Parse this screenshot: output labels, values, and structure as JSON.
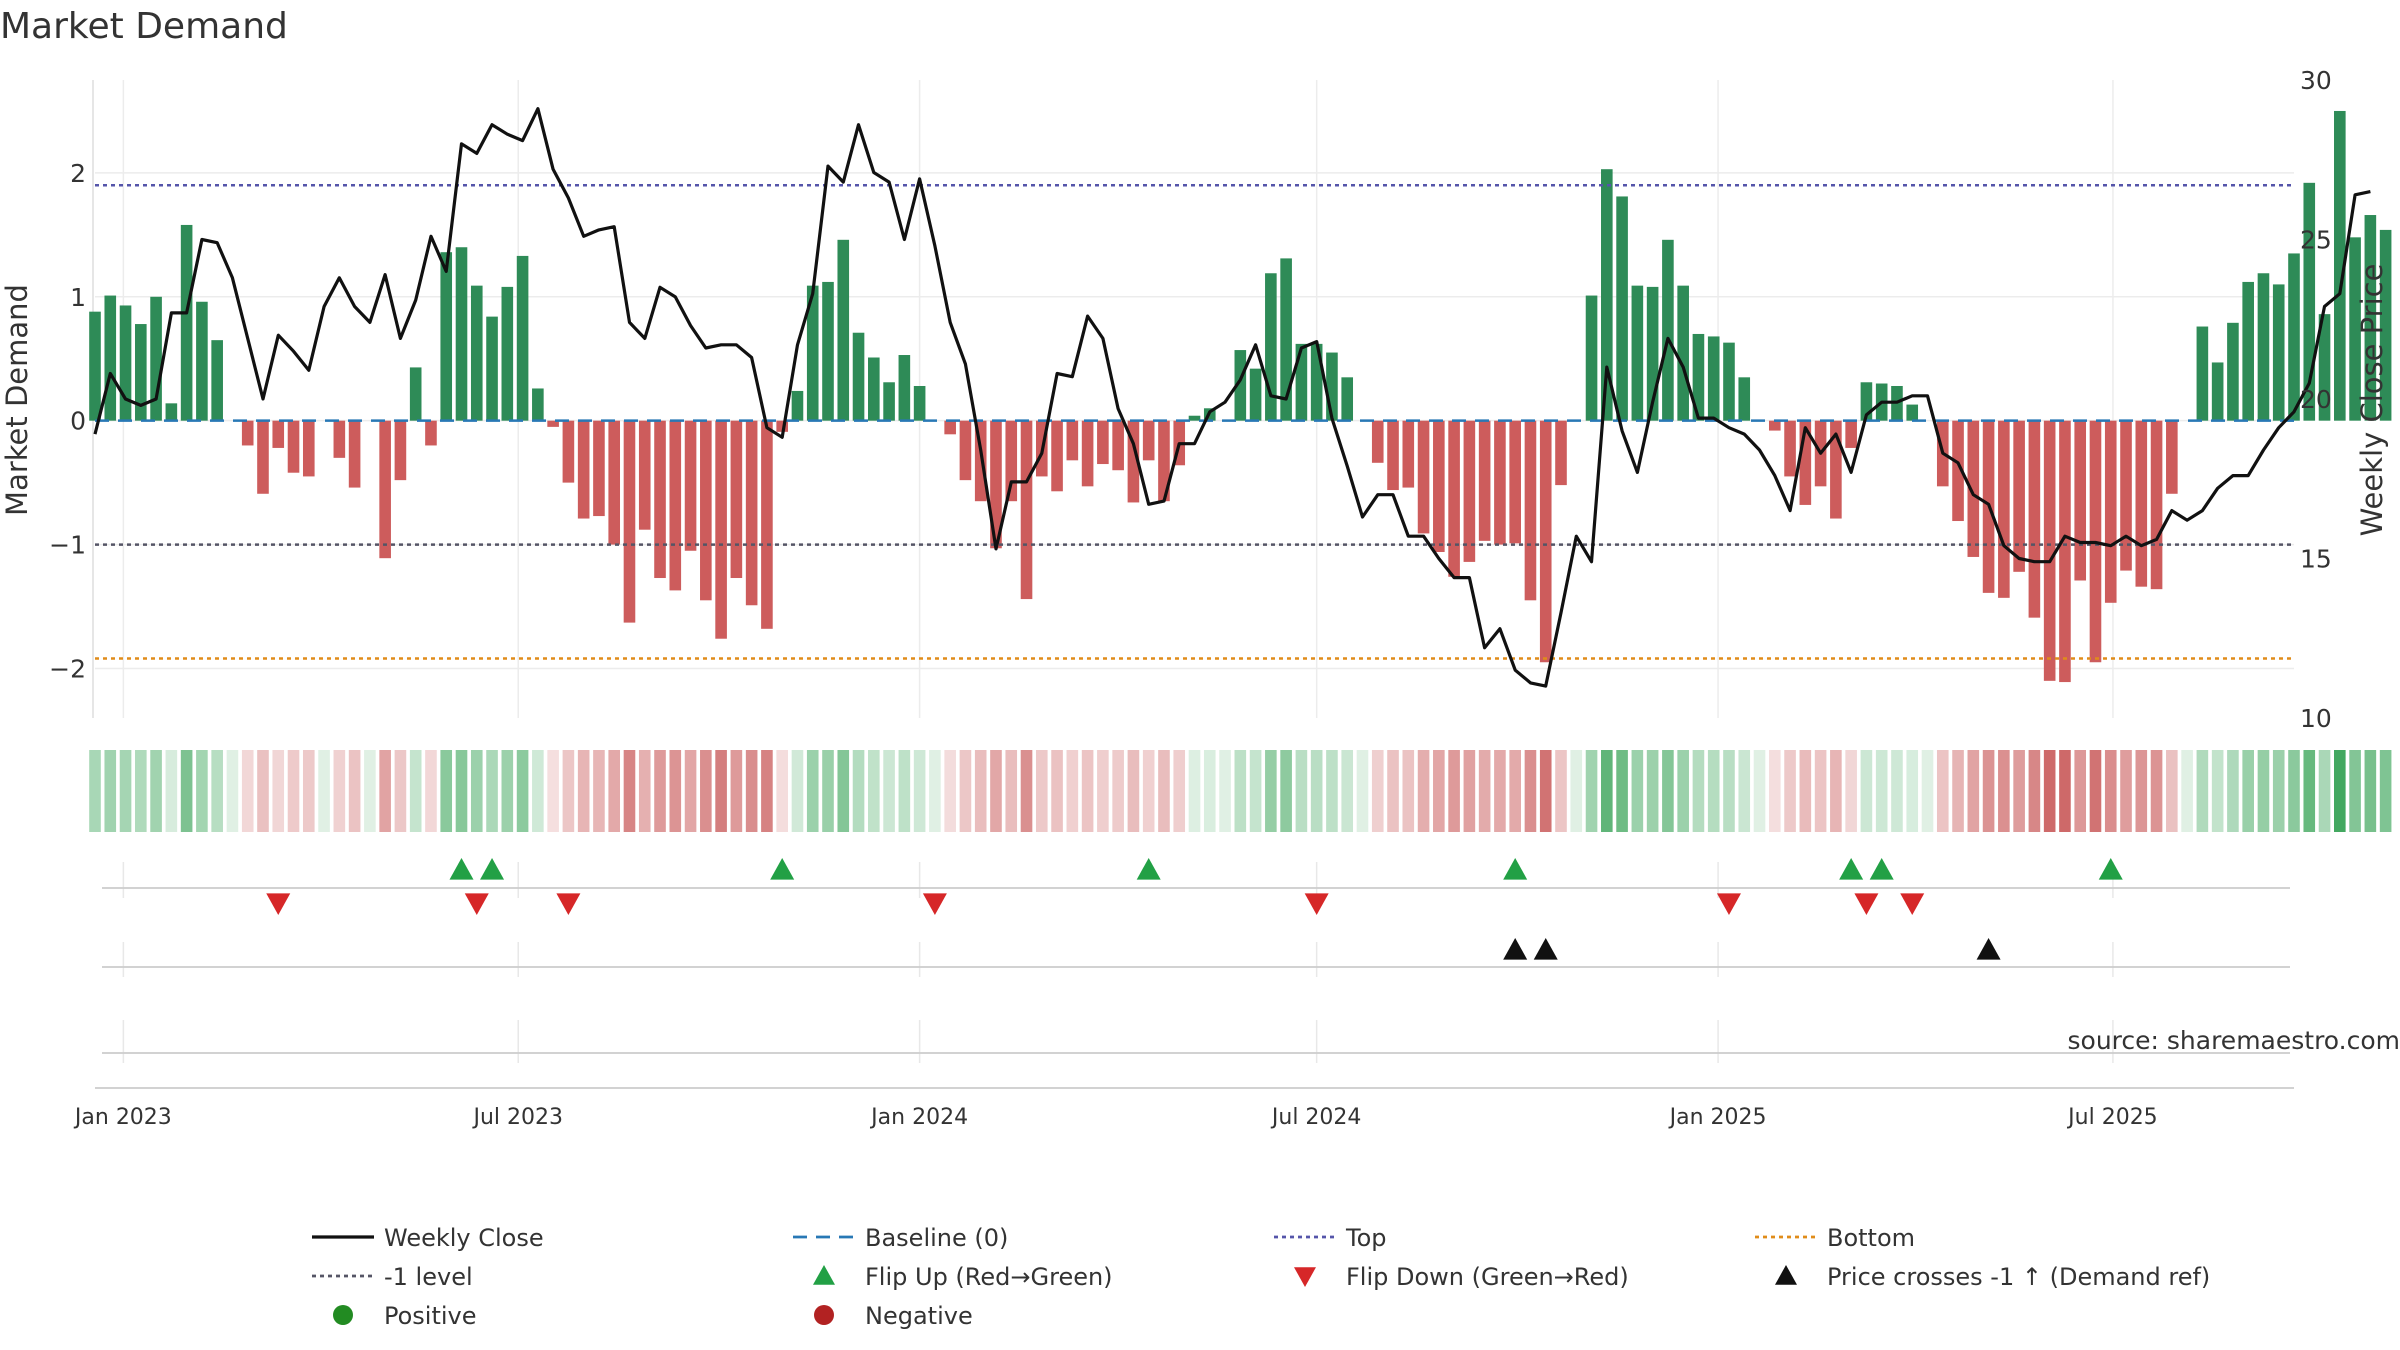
{
  "chart_data": {
    "type": "bar",
    "title": "Market Demand",
    "ylabel_left": "Market Demand",
    "ylabel_right": "Weekly Close Price",
    "ylim_left": [
      -2.4,
      2.75
    ],
    "ylim_right": [
      10,
      30
    ],
    "yticks_left": [
      "2",
      "1",
      "0",
      "−1",
      "−2"
    ],
    "yticks_left_values": [
      2,
      1,
      0,
      -1,
      -2
    ],
    "yticks_right": [
      "30",
      "25",
      "20",
      "15",
      "10"
    ],
    "yticks_right_values": [
      30,
      25,
      20,
      15,
      10
    ],
    "x_range": [
      "2022-12-19",
      "2025-09-22"
    ],
    "x_ticks": [
      {
        "date": "2023-01-01",
        "label": "Jan 2023"
      },
      {
        "date": "2023-07-01",
        "label": "Jul 2023"
      },
      {
        "date": "2024-01-01",
        "label": "Jan 2024"
      },
      {
        "date": "2024-07-01",
        "label": "Jul 2024"
      },
      {
        "date": "2025-01-01",
        "label": "Jan 2025"
      },
      {
        "date": "2025-07-01",
        "label": "Jul 2025"
      }
    ],
    "start_date": "2022-12-19",
    "week_step_days": 7,
    "top_level": 1.9,
    "bottom_level": -1.92,
    "minus_one_level": -1,
    "baseline": 0,
    "demand": [
      0.88,
      1.01,
      0.93,
      0.78,
      1.0,
      0.14,
      1.58,
      0.96,
      0.65,
      0,
      -0.2,
      -0.59,
      -0.22,
      -0.42,
      -0.45,
      0,
      -0.3,
      -0.54,
      0,
      -1.11,
      -0.48,
      0.43,
      -0.2,
      1.36,
      1.4,
      1.09,
      0.84,
      1.08,
      1.33,
      0.26,
      -0.05,
      -0.5,
      -0.79,
      -0.77,
      -1.0,
      -1.63,
      -0.88,
      -1.27,
      -1.37,
      -1.05,
      -1.45,
      -1.76,
      -1.27,
      -1.49,
      -1.68,
      -0.09,
      0.24,
      1.09,
      1.12,
      1.46,
      0.71,
      0.51,
      0.31,
      0.53,
      0.28,
      0,
      -0.11,
      -0.48,
      -0.65,
      -1.03,
      -0.65,
      -1.44,
      -0.45,
      -0.57,
      -0.32,
      -0.53,
      -0.35,
      -0.4,
      -0.66,
      -0.32,
      -0.65,
      -0.36,
      0.04,
      0.1,
      0,
      0.57,
      0.42,
      1.19,
      1.31,
      0.62,
      0.62,
      0.55,
      0.35,
      0,
      -0.34,
      -0.56,
      -0.54,
      -0.91,
      -1.06,
      -1.26,
      -1.14,
      -0.97,
      -1.0,
      -0.99,
      -1.45,
      -1.95,
      -0.52,
      0,
      1.01,
      2.03,
      1.81,
      1.09,
      1.08,
      1.46,
      1.09,
      0.7,
      0.68,
      0.63,
      0.35,
      0,
      -0.08,
      -0.45,
      -0.68,
      -0.53,
      -0.79,
      -0.22,
      0.31,
      0.3,
      0.28,
      0.13,
      0,
      -0.53,
      -0.81,
      -1.1,
      -1.39,
      -1.43,
      -1.22,
      -1.59,
      -2.1,
      -2.11,
      -1.29,
      -1.95,
      -1.47,
      -1.21,
      -1.34,
      -1.36,
      -0.59,
      0,
      0.76,
      0.47,
      0.79,
      1.12,
      1.19,
      1.1,
      1.35,
      1.92,
      0.86,
      2.5,
      1.48,
      1.66,
      1.54
    ],
    "price": [
      18.9,
      20.8,
      20.0,
      19.8,
      20.0,
      22.7,
      22.7,
      25.0,
      24.9,
      23.8,
      21.9,
      20.0,
      22.0,
      21.5,
      20.9,
      22.9,
      23.8,
      22.9,
      22.4,
      23.9,
      21.9,
      23.1,
      25.1,
      24.0,
      28.0,
      27.7,
      28.6,
      28.3,
      28.1,
      29.1,
      27.2,
      26.3,
      25.1,
      25.3,
      25.4,
      22.4,
      21.9,
      23.5,
      23.2,
      22.3,
      21.6,
      21.7,
      21.7,
      21.3,
      19.1,
      18.8,
      21.7,
      23.3,
      27.3,
      26.8,
      28.6,
      27.1,
      26.8,
      25.0,
      26.9,
      24.8,
      22.4,
      21.1,
      18.4,
      15.3,
      17.4,
      17.4,
      18.3,
      20.8,
      20.7,
      22.6,
      21.9,
      19.7,
      18.6,
      16.7,
      16.8,
      18.6,
      18.6,
      19.6,
      19.9,
      20.6,
      21.7,
      20.1,
      20.0,
      21.6,
      21.8,
      19.4,
      17.9,
      16.3,
      17.0,
      17.0,
      15.7,
      15.7,
      15.0,
      14.4,
      14.4,
      12.2,
      12.8,
      11.5,
      11.1,
      11.0,
      13.3,
      15.7,
      14.9,
      21.0,
      19.0,
      17.7,
      19.9,
      21.9,
      21.0,
      19.4,
      19.4,
      19.1,
      18.9,
      18.4,
      17.6,
      16.5,
      19.1,
      18.3,
      18.9,
      17.7,
      19.5,
      19.9,
      19.9,
      20.1,
      20.1,
      18.3,
      18.0,
      17.0,
      16.7,
      15.4,
      15.0,
      14.9,
      14.9,
      15.7,
      15.5,
      15.5,
      15.4,
      15.7,
      15.4,
      15.6,
      16.5,
      16.2,
      16.5,
      17.2,
      17.6,
      17.6,
      18.4,
      19.1,
      19.6,
      20.5,
      22.9,
      23.3,
      26.4,
      26.5
    ],
    "flip_up_dates": [
      "2023-06-05",
      "2023-06-19",
      "2023-10-30",
      "2024-04-15",
      "2024-09-30",
      "2025-03-03",
      "2025-03-17",
      "2025-06-30"
    ],
    "flip_down_dates": [
      "2023-03-13",
      "2023-06-12",
      "2023-07-24",
      "2024-01-08",
      "2024-07-01",
      "2025-01-06",
      "2025-03-10",
      "2025-03-31"
    ],
    "price_cross_dates": [
      "2024-09-30",
      "2024-10-14",
      "2025-05-05"
    ],
    "legend": [
      {
        "label": "Weekly Close",
        "kind": "line-solid",
        "color": "#111111"
      },
      {
        "label": "Baseline (0)",
        "kind": "line-dash",
        "color": "#2878b5"
      },
      {
        "label": "Top",
        "kind": "line-dot",
        "color": "#5555aa"
      },
      {
        "label": "Bottom",
        "kind": "line-dot",
        "color": "#e08c1a"
      },
      {
        "label": "-1 level",
        "kind": "line-dot",
        "color": "#555566"
      },
      {
        "label": "Flip Up (Red→Green)",
        "kind": "tri-up",
        "color": "#22a045"
      },
      {
        "label": "Flip Down (Green→Red)",
        "kind": "tri-down",
        "color": "#d62728"
      },
      {
        "label": "Price crosses -1 ↑ (Demand ref)",
        "kind": "tri-up",
        "color": "#111111"
      },
      {
        "label": "Positive",
        "kind": "dot",
        "color": "#228b22"
      },
      {
        "label": "Negative",
        "kind": "dot",
        "color": "#b22222"
      }
    ],
    "source": "source: sharemaestro.com"
  },
  "colors": {
    "positive_bar": "#2e8b57",
    "negative_bar": "#cd5c5c",
    "positive_strip_base": "#2e9e4e",
    "negative_strip_base": "#c04040",
    "price_line": "#111111",
    "grid": "#ececec"
  }
}
